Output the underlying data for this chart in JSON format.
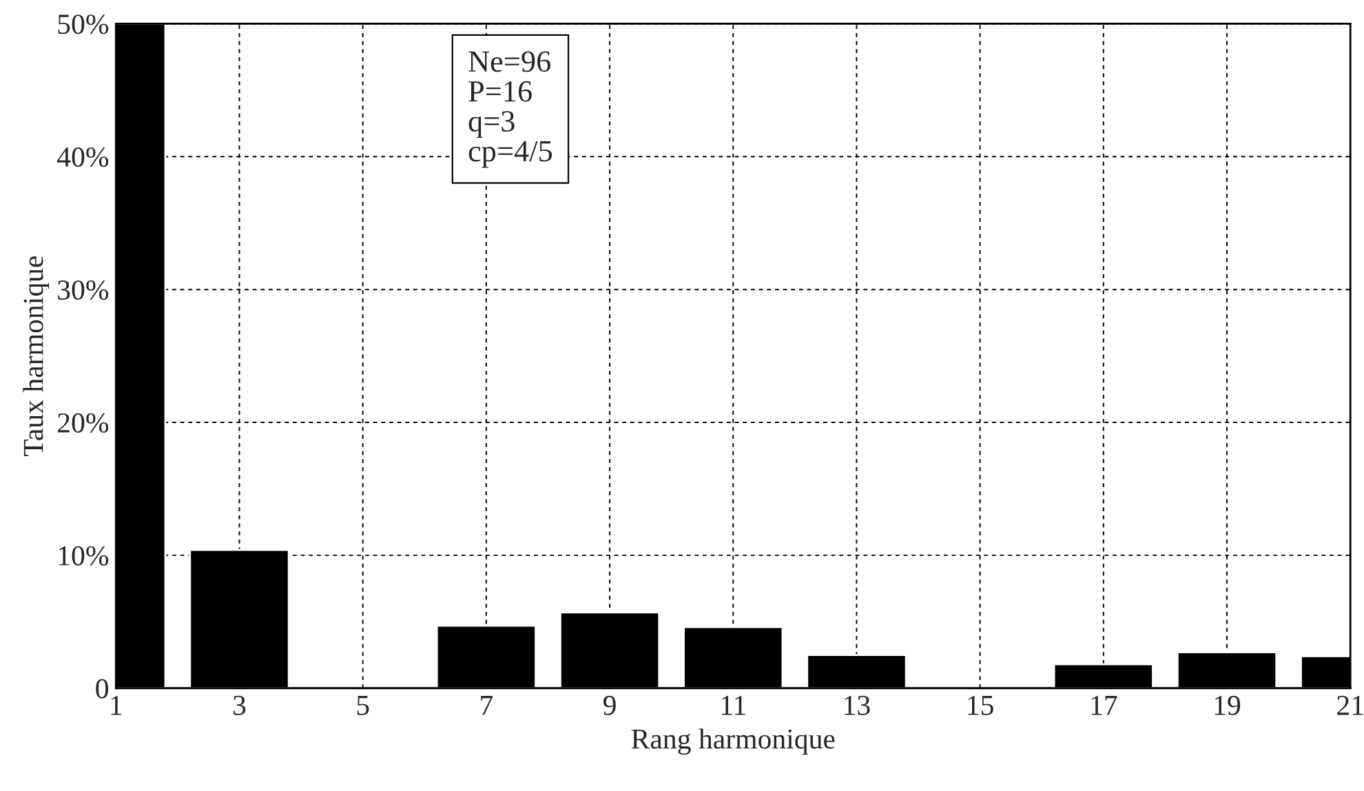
{
  "chart_data": {
    "type": "bar",
    "xlabel": "Rang harmonique",
    "ylabel": "Taux harmonique",
    "x": [
      1,
      3,
      5,
      7,
      9,
      11,
      13,
      15,
      17,
      19,
      21
    ],
    "values": [
      50,
      10.4,
      null,
      4.7,
      5.7,
      4.6,
      2.5,
      null,
      1.8,
      2.7,
      2.4
    ],
    "color": "#000000",
    "xlim": [
      1,
      21
    ],
    "xticks": [
      1,
      3,
      5,
      7,
      9,
      11,
      13,
      15,
      17,
      19,
      21
    ],
    "ylim": [
      0,
      50
    ],
    "yticks": [
      0,
      {
        "value": 10,
        "label": "10%"
      },
      {
        "value": 20,
        "label": "20%"
      },
      {
        "value": 30,
        "label": "30%"
      },
      {
        "value": 40,
        "label": "40%"
      },
      {
        "value": 50,
        "label": "50%"
      }
    ],
    "grid": true,
    "legend": false,
    "annotations": [
      "Ne=96\nP=16\nq=3\ncp=4/5"
    ]
  }
}
